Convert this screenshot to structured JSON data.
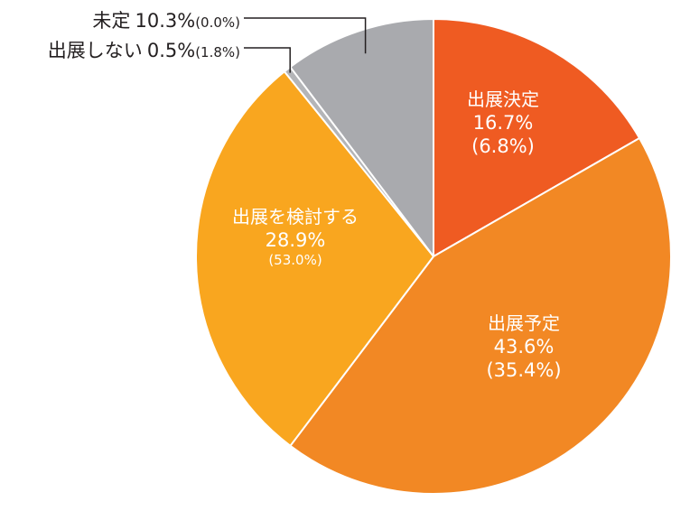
{
  "chart_data": {
    "type": "pie",
    "slices": [
      {
        "label": "出展決定",
        "value": 16.7,
        "value_text": "16.7%",
        "prev_text": "(6.8%)",
        "color": "#ef5b22"
      },
      {
        "label": "出展予定",
        "value": 43.6,
        "value_text": "43.6%",
        "prev_text": "(35.4%)",
        "color": "#f28824"
      },
      {
        "label": "出展を検討する",
        "value": 28.9,
        "value_text": "28.9%",
        "prev_text": "(53.0%)",
        "color": "#f9a61f"
      },
      {
        "label": "出展しない",
        "value": 0.5,
        "value_text": "0.5%",
        "prev_text": "(1.8%)",
        "color": "#b4b5b8"
      },
      {
        "label": "未定",
        "value": 10.3,
        "value_text": "10.3%",
        "prev_text": "(0.0%)",
        "color": "#a9aaae"
      }
    ],
    "title": "",
    "legend": "none"
  }
}
